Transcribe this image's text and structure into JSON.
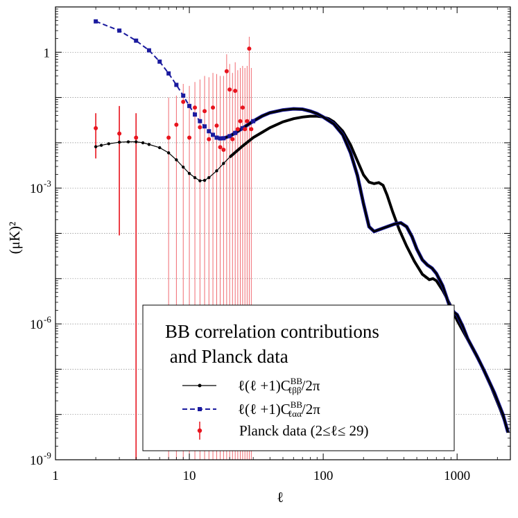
{
  "chart_data": {
    "type": "line",
    "title": "",
    "xlabel": "ℓ",
    "ylabel": "(μK)²",
    "xscale": "log",
    "yscale": "log",
    "xlim": [
      1,
      2500
    ],
    "ylim": [
      1e-09,
      10
    ],
    "grid": "horizontal dotted",
    "x_ticks": [
      {
        "value": 1,
        "label": "1"
      },
      {
        "value": 10,
        "label": "10"
      },
      {
        "value": 100,
        "label": "100"
      },
      {
        "value": 1000,
        "label": "1000"
      }
    ],
    "y_ticks": [
      {
        "value": 1,
        "label": "1"
      },
      {
        "value": 0.001,
        "base": "10",
        "exp": "-3"
      },
      {
        "value": 1e-06,
        "base": "10",
        "exp": "-6"
      },
      {
        "value": 1e-09,
        "base": "10",
        "exp": "-9"
      }
    ],
    "legend": {
      "placement": "bottom-center",
      "title_lines": [
        "BB correlation contributions",
        " and Planck data"
      ],
      "entries": [
        {
          "prefix": "ℓ(ℓ +1)C",
          "sup": "BB",
          "sub": "ℓββ",
          "suffix": "/2π"
        },
        {
          "prefix": "ℓ(ℓ +1)C",
          "sup": "BB",
          "sub": "ℓαα",
          "suffix": "/2π"
        },
        {
          "text": "Planck data (2≤ℓ≤ 29)"
        }
      ]
    },
    "colors": {
      "beta": "#000000",
      "alpha": "#1a1a9e",
      "planck": "#e8141e",
      "planck_err": "#e8141e",
      "grid": "#888888"
    },
    "series": [
      {
        "key": "beta",
        "style": "solid-with-dots",
        "points": [
          [
            2,
            0.0082
          ],
          [
            2.2,
            0.0088
          ],
          [
            2.5,
            0.0095
          ],
          [
            3,
            0.0103
          ],
          [
            3.5,
            0.0105
          ],
          [
            4,
            0.0105
          ],
          [
            4.5,
            0.01
          ],
          [
            5,
            0.0092
          ],
          [
            6,
            0.0078
          ],
          [
            7,
            0.006
          ],
          [
            8,
            0.0042
          ],
          [
            9,
            0.0029
          ],
          [
            10,
            0.0021
          ],
          [
            11,
            0.0017
          ],
          [
            12,
            0.00145
          ],
          [
            13,
            0.00148
          ],
          [
            14,
            0.0017
          ],
          [
            16,
            0.0024
          ],
          [
            18,
            0.0035
          ],
          [
            20,
            0.0048
          ],
          [
            25,
            0.0085
          ],
          [
            30,
            0.013
          ],
          [
            40,
            0.0215
          ],
          [
            50,
            0.029
          ],
          [
            60,
            0.034
          ],
          [
            70,
            0.037
          ],
          [
            80,
            0.0385
          ],
          [
            90,
            0.0385
          ],
          [
            100,
            0.037
          ],
          [
            110,
            0.034
          ],
          [
            120,
            0.029
          ],
          [
            140,
            0.018
          ],
          [
            160,
            0.009
          ],
          [
            180,
            0.004
          ],
          [
            200,
            0.00195
          ],
          [
            220,
            0.00135
          ],
          [
            240,
            0.00125
          ],
          [
            260,
            0.00132
          ],
          [
            280,
            0.00115
          ],
          [
            300,
            0.0007
          ],
          [
            330,
            0.0003
          ],
          [
            370,
            0.00012
          ],
          [
            420,
            5.2e-05
          ],
          [
            480,
            2.4e-05
          ],
          [
            550,
            1.25e-05
          ],
          [
            620,
            9.5e-06
          ],
          [
            660,
            1e-05
          ],
          [
            700,
            9e-06
          ],
          [
            780,
            5.5e-06
          ],
          [
            880,
            2.8e-06
          ],
          [
            1000,
            1.2e-06
          ],
          [
            1200,
            4.5e-07
          ],
          [
            1500,
            1.3e-07
          ],
          [
            1800,
            4e-08
          ],
          [
            2100,
            1.3e-08
          ],
          [
            2400,
            4.5e-09
          ]
        ]
      },
      {
        "key": "alpha",
        "style": "dashed-with-squares",
        "points": [
          [
            2,
            4.8
          ],
          [
            3,
            3.0
          ],
          [
            4,
            1.8
          ],
          [
            5,
            1.1
          ],
          [
            6,
            0.62
          ],
          [
            7,
            0.34
          ],
          [
            8,
            0.19
          ],
          [
            9,
            0.11
          ],
          [
            10,
            0.065
          ],
          [
            11,
            0.042
          ],
          [
            12,
            0.03
          ],
          [
            13,
            0.023
          ],
          [
            14,
            0.018
          ],
          [
            15,
            0.015
          ],
          [
            16,
            0.013
          ],
          [
            17,
            0.0125
          ],
          [
            18,
            0.0126
          ],
          [
            20,
            0.014
          ],
          [
            22,
            0.0165
          ],
          [
            25,
            0.021
          ],
          [
            30,
            0.03
          ],
          [
            35,
            0.039
          ],
          [
            40,
            0.046
          ],
          [
            50,
            0.053
          ],
          [
            60,
            0.056
          ],
          [
            70,
            0.055
          ],
          [
            80,
            0.05
          ],
          [
            90,
            0.044
          ],
          [
            100,
            0.037
          ],
          [
            120,
            0.026
          ],
          [
            140,
            0.015
          ],
          [
            160,
            0.006
          ],
          [
            180,
            0.0019
          ],
          [
            200,
            0.00045
          ],
          [
            220,
            0.00014
          ],
          [
            240,
            0.00011
          ],
          [
            260,
            0.00012
          ],
          [
            300,
            0.00014
          ],
          [
            340,
            0.00016
          ],
          [
            380,
            0.00017
          ],
          [
            420,
            0.00014
          ],
          [
            460,
            8.5e-05
          ],
          [
            500,
            4.5e-05
          ],
          [
            550,
            2.6e-05
          ],
          [
            600,
            2e-05
          ],
          [
            650,
            1.7e-05
          ],
          [
            700,
            1.3e-05
          ],
          [
            780,
            7e-06
          ],
          [
            870,
            2.7e-06
          ],
          [
            950,
            1.8e-06
          ],
          [
            1000,
            1.6e-06
          ],
          [
            1100,
            9e-07
          ],
          [
            1200,
            4.7e-07
          ],
          [
            1400,
            2e-07
          ],
          [
            1600,
            9e-08
          ],
          [
            1900,
            3e-08
          ],
          [
            2200,
            1e-08
          ],
          [
            2400,
            4e-09
          ]
        ]
      }
    ],
    "planck": {
      "points": [
        {
          "l": 2,
          "y": 0.021,
          "lo": 0.0045,
          "hi": 0.045
        },
        {
          "l": 3,
          "y": 0.016,
          "lo": 9e-05,
          "hi": 0.065
        },
        {
          "l": 4,
          "y": 0.013,
          "lo": 1e-09,
          "hi": 0.045
        },
        {
          "l": 7,
          "y": 0.013,
          "lo": 1e-09,
          "hi": 0.1
        },
        {
          "l": 8,
          "y": 0.025,
          "lo": 1e-09,
          "hi": 0.11
        },
        {
          "l": 9,
          "y": 0.08,
          "lo": 1e-09,
          "hi": 0.2
        },
        {
          "l": 10,
          "y": 0.013,
          "lo": 1e-09,
          "hi": 0.18
        },
        {
          "l": 11,
          "y": 0.06,
          "lo": 1e-09,
          "hi": 0.22
        },
        {
          "l": 12,
          "y": 0.022,
          "lo": 1e-09,
          "hi": 0.25
        },
        {
          "l": 13,
          "y": 0.05,
          "lo": 1e-09,
          "hi": 0.3
        },
        {
          "l": 14,
          "y": 0.012,
          "lo": 1e-09,
          "hi": 0.28
        },
        {
          "l": 15,
          "y": 0.06,
          "lo": 1e-09,
          "hi": 0.35
        },
        {
          "l": 16,
          "y": 0.024,
          "lo": 1e-09,
          "hi": 0.33
        },
        {
          "l": 17,
          "y": 0.008,
          "lo": 1e-09,
          "hi": 0.3
        },
        {
          "l": 18,
          "y": 0.007,
          "lo": 1e-09,
          "hi": 0.3
        },
        {
          "l": 19,
          "y": 0.38,
          "lo": 1e-09,
          "hi": 0.9
        },
        {
          "l": 20,
          "y": 0.15,
          "lo": 1e-09,
          "hi": 0.55
        },
        {
          "l": 21,
          "y": 0.012,
          "lo": 1e-09,
          "hi": 0.35
        },
        {
          "l": 22,
          "y": 0.14,
          "lo": 1e-09,
          "hi": 0.6
        },
        {
          "l": 23,
          "y": 0.02,
          "lo": 1e-09,
          "hi": 0.4
        },
        {
          "l": 24,
          "y": 0.03,
          "lo": 1e-09,
          "hi": 0.45
        },
        {
          "l": 25,
          "y": 0.06,
          "lo": 1e-09,
          "hi": 0.5
        },
        {
          "l": 26,
          "y": 0.02,
          "lo": 1e-09,
          "hi": 0.45
        },
        {
          "l": 27,
          "y": 0.03,
          "lo": 1e-09,
          "hi": 0.5
        },
        {
          "l": 28,
          "y": 1.2,
          "lo": 1e-09,
          "hi": 2.2
        },
        {
          "l": 29,
          "y": 0.02,
          "lo": 1e-09,
          "hi": 0.45
        }
      ]
    }
  }
}
